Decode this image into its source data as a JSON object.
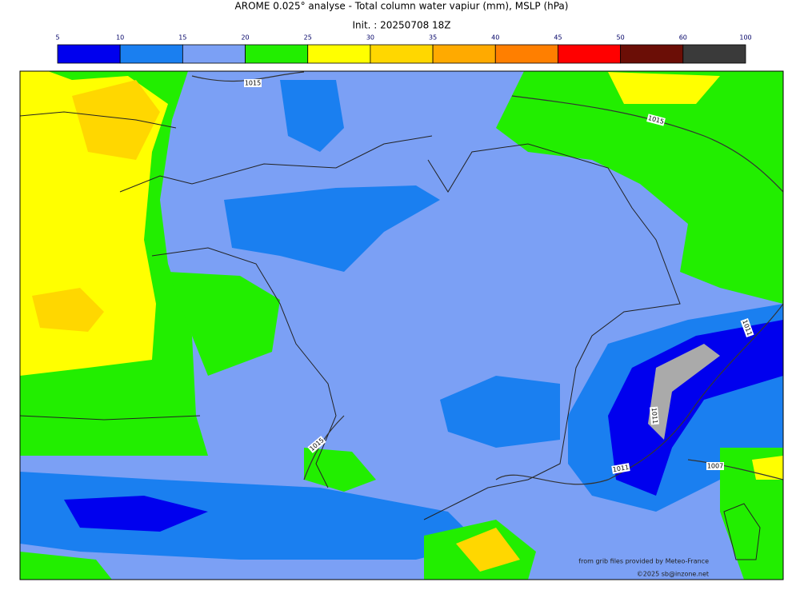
{
  "header": {
    "title": "AROME 0.025° analyse - Total column water vapiur (mm), MSLP (hPa)",
    "subtitle": "Init. : 20250708 18Z"
  },
  "colorbar": {
    "ticks": [
      5,
      10,
      15,
      20,
      25,
      30,
      35,
      40,
      45,
      50,
      60,
      100
    ],
    "colors": [
      "#0000ee",
      "#1a7ff0",
      "#7ba0f5",
      "#22ee00",
      "#ffff00",
      "#ffd700",
      "#ffaa00",
      "#ff7f00",
      "#ff0000",
      "#6b0e06",
      "#3a3a3a"
    ]
  },
  "isobars": [
    {
      "label": "1015"
    },
    {
      "label": "1015"
    },
    {
      "label": "1011"
    },
    {
      "label": "1015"
    },
    {
      "label": "1011"
    },
    {
      "label": "1007"
    },
    {
      "label": "1011"
    }
  ],
  "credits": [
    "from grib files provided by Meteo-France",
    "©2025 sb@inzone.net"
  ]
}
